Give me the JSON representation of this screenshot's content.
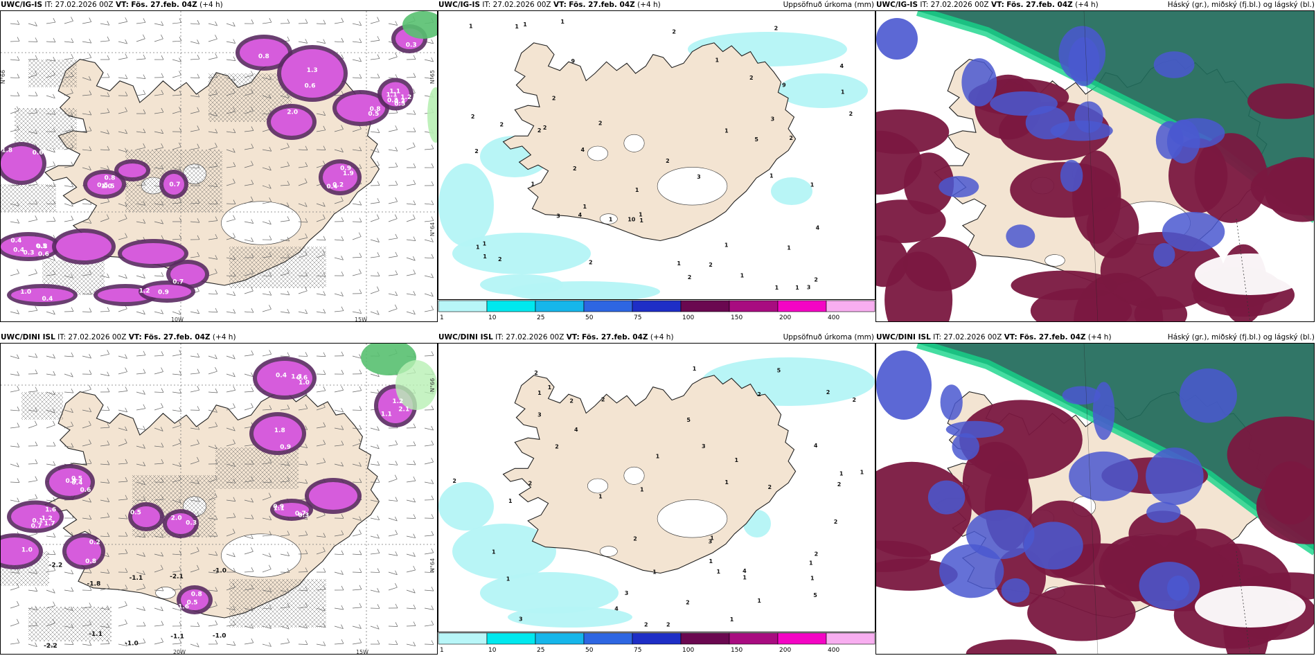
{
  "colors": {
    "land": "#f3e4d2",
    "sea": "#ffffff",
    "precip_light": "#b4f4f6",
    "snow": "#d65cdc",
    "snow_dark": "#5a2a62",
    "high_cloud": "#1f6a5a",
    "high_cloud_edge": "#16d48a",
    "mid_cloud": "#4a58d0",
    "low_cloud": "#7a1840"
  },
  "rows": [
    {
      "model": "UWC/IG-IS",
      "it_label": "IT:",
      "it_value": "27.02.2026 00Z",
      "vt_label": "VT:",
      "vt_value": "Fös. 27.feb. 04Z",
      "lead": "(+4 h)",
      "precip_title": "Uppsöfnuð úrkoma (mm)",
      "cloud_title": "Háský (gr.), miðský (fj.bl.) og lágský (bl.)",
      "snow_labels": [
        "0.3",
        "1.1",
        "0.9",
        "0.5",
        "0.7",
        "0.4",
        "0.3",
        "1.8",
        "0.5",
        "0.8",
        "0.6",
        "0.9",
        "1.2",
        "1.0",
        "0.4",
        "0.8",
        "0.5",
        "2.0",
        "1.3",
        "0.6",
        "0.5",
        "0.4",
        "1.9",
        "0.7",
        "1.2",
        "1.1",
        "1.0",
        "0.8",
        "0.6",
        "0.3",
        "0.4",
        "0.3",
        "0.5",
        "0.2",
        "0.8"
      ],
      "snow_neg_labels": [],
      "precip_labels": [
        "1",
        "2",
        "1",
        "1",
        "3",
        "9",
        "10",
        "2",
        "4",
        "5",
        "2",
        "2",
        "1",
        "1",
        "4",
        "1",
        "2",
        "2",
        "4",
        "2",
        "1",
        "2",
        "2",
        "3",
        "1",
        "1",
        "1",
        "1",
        "9",
        "1",
        "1",
        "1",
        "2",
        "4",
        "2",
        "2",
        "2",
        "1",
        "1",
        "2",
        "2",
        "2",
        "1",
        "1",
        "1",
        "1",
        "1",
        "2",
        "1",
        "1",
        "2",
        "3",
        "3",
        "2",
        "1"
      ],
      "axis_labels": [
        "10W",
        "15W",
        "N°66",
        "N°65",
        "N°64"
      ]
    },
    {
      "model": "UWC/DINI ISL",
      "it_label": "IT:",
      "it_value": "27.02.2026 00Z",
      "vt_label": "VT:",
      "vt_value": "Fös. 27.feb. 04Z",
      "lead": "(+4 h)",
      "precip_title": "Uppsöfnuð úrkoma (mm)",
      "cloud_title": "Háský (gr.), miðský (fj.bl.) og lágský (bl.)",
      "snow_labels": [
        "1.2",
        "0.5",
        "0.1",
        "0.8",
        "0.7",
        "1.2",
        "1.0",
        "1.6",
        "1.3",
        "0.8",
        "0.5",
        "0.4",
        "0.3",
        "0.6",
        "0.2",
        "0.5",
        "2.1",
        "1.8",
        "1.1",
        "0.9",
        "1.0",
        "1.1",
        "0.7",
        "2.0",
        "0.9",
        "0.4",
        "1.6",
        "1.7",
        "0.8",
        "0.6",
        "0.3"
      ],
      "snow_neg_labels": [
        "-2.2",
        "-1.8",
        "-1.1",
        "-2.1",
        "-1.0",
        "-2.2",
        "-1.1",
        "-1.0",
        "-1.1",
        "-1.0"
      ],
      "precip_labels": [
        "1",
        "2",
        "4",
        "3",
        "5",
        "3",
        "4",
        "5",
        "2",
        "3",
        "2",
        "3",
        "1",
        "1",
        "1",
        "1",
        "1",
        "1",
        "1",
        "1",
        "1",
        "1",
        "1",
        "3",
        "2",
        "4",
        "2",
        "2",
        "1",
        "2",
        "2",
        "2",
        "4",
        "2",
        "5",
        "2",
        "2",
        "1",
        "1",
        "1",
        "2",
        "1",
        "1",
        "1",
        "2",
        "1",
        "1",
        "2",
        "2",
        "2",
        "1"
      ],
      "axis_labels": [
        "20W",
        "15W",
        "N°66",
        "N°64"
      ]
    }
  ],
  "colorbar": {
    "ticks": [
      "1",
      "10",
      "25",
      "50",
      "75",
      "100",
      "150",
      "200",
      "400"
    ],
    "colors": [
      "#b8f6f8",
      "#00e8ee",
      "#16b6ea",
      "#2e66e2",
      "#1e2ec6",
      "#6a0850",
      "#a80c80",
      "#f404c4",
      "#f8aef0"
    ]
  }
}
